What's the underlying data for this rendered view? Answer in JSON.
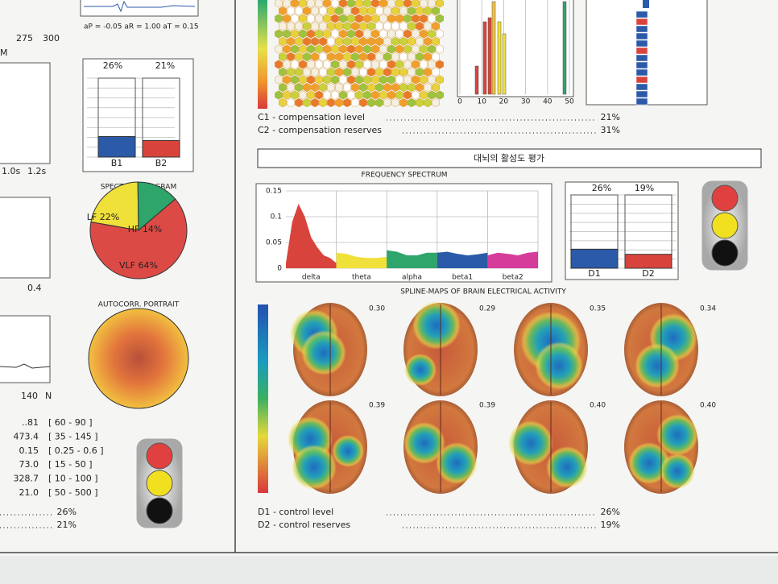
{
  "left_panel": {
    "ecg_caption": "aP = -0.05   aR = 1.00   aT = 0.15",
    "axis_labels_top": [
      "275",
      "300"
    ],
    "m_label": "M",
    "time_labels": [
      "1.0s",
      "1.2s"
    ],
    "axis_label_mid": "0.4",
    "axis_labels_low": [
      "140",
      "N"
    ],
    "indices": [
      {
        "value": "..81",
        "range": "[ 60 - 90 ]"
      },
      {
        "value": "473.4",
        "range": "[ 35 - 145 ]"
      },
      {
        "value": "0.15",
        "range": "[ 0.25 - 0.6 ]"
      },
      {
        "value": "73.0",
        "range": "[ 15 - 50 ]"
      },
      {
        "value": "328.7",
        "range": "[ 10 - 100 ]"
      },
      {
        "value": "21.0",
        "range": "[ 50 - 500 ]"
      }
    ],
    "summary": [
      "26%",
      "21%"
    ]
  },
  "b_chart": {
    "categories": [
      "B1",
      "B2"
    ],
    "values": [
      26,
      21
    ],
    "value_labels": [
      "26%",
      "21%"
    ],
    "colors": [
      "#2b5aa8",
      "#d8443c"
    ],
    "ylim": [
      0,
      100
    ]
  },
  "spectrum_diagram": {
    "title": "SPECTRUM DIAGRAM",
    "labels": [
      "LF 22%",
      "HF 14%",
      "VLF 64%"
    ],
    "values": [
      22,
      14,
      64
    ],
    "colors": [
      "#f0e03a",
      "#2ea56a",
      "#dc4a46"
    ]
  },
  "autocorr_title": "AUTOCORR. PORTRAIT",
  "histogram": {
    "xticks": [
      0,
      10,
      20,
      30,
      40,
      50
    ],
    "xlim": [
      0,
      50
    ]
  },
  "compensation": [
    {
      "label": "C1 - compensation level",
      "value": "21%"
    },
    {
      "label": "C2 - compensation reserves",
      "value": "31%"
    }
  ],
  "section_title": "대뇌의 활성도 평가",
  "frequency_spectrum": {
    "title": "FREQUENCY SPECTRUM",
    "ylim": [
      0,
      0.15
    ],
    "yticks": [
      0,
      0.05,
      0.1,
      0.15
    ],
    "bands": [
      {
        "name": "delta",
        "color": "#d8443c",
        "values": [
          0.01,
          0.09,
          0.125,
          0.1,
          0.06,
          0.04,
          0.025,
          0.02,
          0.01
        ]
      },
      {
        "name": "theta",
        "color": "#f0e03a",
        "values": [
          0.03,
          0.028,
          0.022,
          0.02,
          0.02,
          0.022
        ]
      },
      {
        "name": "alpha",
        "color": "#2ea56a",
        "values": [
          0.035,
          0.032,
          0.025,
          0.025,
          0.03,
          0.03
        ]
      },
      {
        "name": "beta1",
        "color": "#2b5aa8",
        "values": [
          0.03,
          0.032,
          0.028,
          0.025,
          0.027,
          0.03
        ]
      },
      {
        "name": "beta2",
        "color": "#d63c9a",
        "values": [
          0.025,
          0.03,
          0.028,
          0.025,
          0.03,
          0.032
        ]
      }
    ]
  },
  "d_chart": {
    "categories": [
      "D1",
      "D2"
    ],
    "values": [
      26,
      19
    ],
    "value_labels": [
      "26%",
      "19%"
    ],
    "colors": [
      "#2b5aa8",
      "#d8443c"
    ],
    "ylim": [
      0,
      100
    ]
  },
  "spline_maps": {
    "title": "SPLINE-MAPS OF BRAIN ELECTRICAL ACTIVITY",
    "values": [
      "0.30",
      "0.29",
      "0.35",
      "0.34",
      "0.39",
      "0.39",
      "0.40",
      "0.40"
    ]
  },
  "control": [
    {
      "label": "D1 - control level",
      "value": "26%"
    },
    {
      "label": "D2 - control reserves",
      "value": "19%"
    }
  ]
}
